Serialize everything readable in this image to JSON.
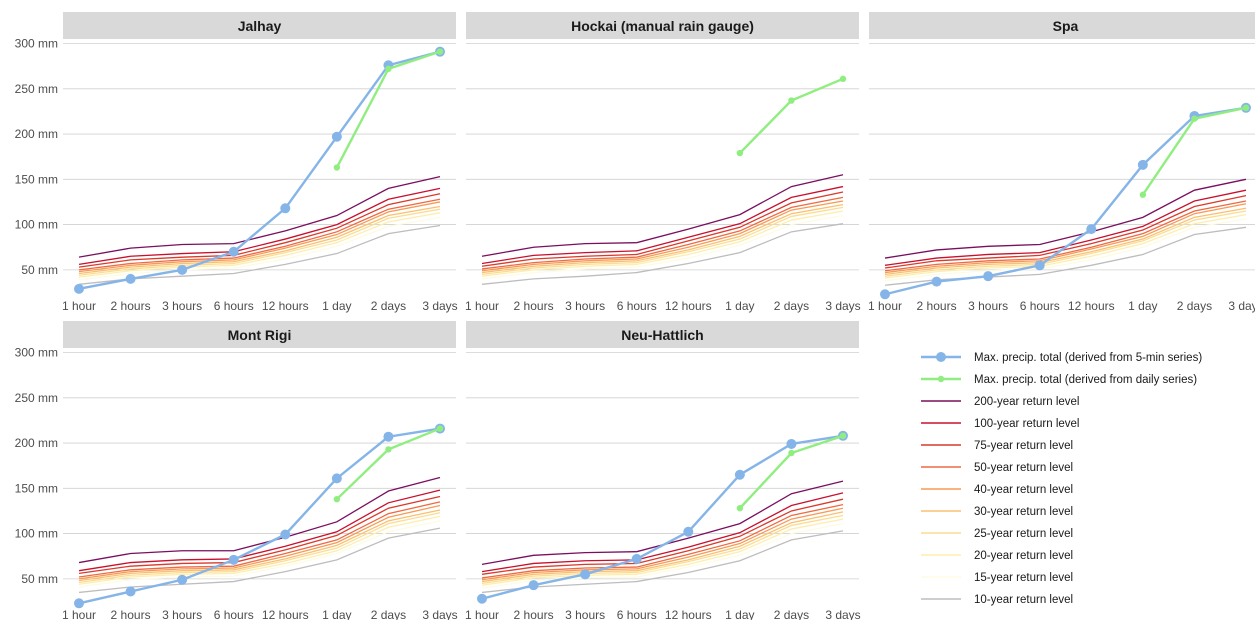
{
  "chart_data": {
    "type": "line",
    "x_categories": [
      "1 hour",
      "2 hours",
      "3 hours",
      "6 hours",
      "12 hours",
      "1 day",
      "2 days",
      "3 days"
    ],
    "ylim": [
      20,
      305
    ],
    "y_ticks": [
      50,
      100,
      150,
      200,
      250,
      300
    ],
    "y_tick_labels": [
      "50 mm",
      "100 mm",
      "150 mm",
      "200 mm",
      "250 mm",
      "300 mm"
    ],
    "grid": true,
    "legend_position": "bottom-right",
    "series_styles": [
      {
        "name": "Max. precip. total (derived from 5-min series)",
        "color": "#85b5e8",
        "kind": "point-line"
      },
      {
        "name": "Max. precip. total (derived from daily series)",
        "color": "#90ee80",
        "kind": "small-point-line"
      },
      {
        "name": "200-year return level",
        "color": "#7a0f5f",
        "kind": "line"
      },
      {
        "name": "100-year return level",
        "color": "#c8102e",
        "kind": "line"
      },
      {
        "name": "75-year return level",
        "color": "#d93a2b",
        "kind": "line"
      },
      {
        "name": "50-year return level",
        "color": "#ee6a43",
        "kind": "line"
      },
      {
        "name": "40-year return level",
        "color": "#f69a55",
        "kind": "line"
      },
      {
        "name": "30-year return level",
        "color": "#f9c070",
        "kind": "line"
      },
      {
        "name": "25-year return level",
        "color": "#fcdc93",
        "kind": "line"
      },
      {
        "name": "20-year return level",
        "color": "#fdeeaf",
        "kind": "line"
      },
      {
        "name": "15-year return level",
        "color": "#fefbe3",
        "kind": "line"
      },
      {
        "name": "10-year return level",
        "color": "#bdbdbd",
        "kind": "line"
      }
    ],
    "panels": [
      {
        "title": "Jalhay",
        "series": [
          {
            "name": "Max. precip. total (derived from 5-min series)",
            "values": [
              29,
              40,
              50,
              70,
              118,
              197,
              276,
              291
            ]
          },
          {
            "name": "Max. precip. total (derived from daily series)",
            "values": [
              null,
              null,
              null,
              null,
              null,
              163,
              272,
              291
            ]
          },
          {
            "name": "200-year return level",
            "values": [
              64,
              74,
              78,
              79,
              93,
              110,
              140,
              153
            ]
          },
          {
            "name": "100-year return level",
            "values": [
              56,
              65,
              68,
              70,
              84,
              100,
              128,
              140
            ]
          },
          {
            "name": "75-year return level",
            "values": [
              53,
              61,
              64,
              66,
              80,
              96,
              122,
              134
            ]
          },
          {
            "name": "50-year return level",
            "values": [
              50,
              57,
              61,
              63,
              76,
              92,
              117,
              128
            ]
          },
          {
            "name": "40-year return level",
            "values": [
              48,
              55,
              59,
              61,
              74,
              89,
              114,
              125
            ]
          },
          {
            "name": "30-year return level",
            "values": [
              46,
              53,
              57,
              59,
              71,
              86,
              110,
              120
            ]
          },
          {
            "name": "25-year return level",
            "values": [
              44,
              51,
              55,
              57,
              69,
              83,
              107,
              117
            ]
          },
          {
            "name": "20-year return level",
            "values": [
              42,
              49,
              53,
              55,
              66,
              80,
              103,
              113
            ]
          },
          {
            "name": "15-year return level",
            "values": [
              39,
              46,
              50,
              52,
              62,
              76,
              98,
              108
            ]
          },
          {
            "name": "10-year return level",
            "values": [
              34,
              40,
              43,
              46,
              56,
              68,
              90,
              99
            ]
          }
        ]
      },
      {
        "title": "Hockai (manual rain gauge)",
        "series": [
          {
            "name": "Max. precip. total (derived from daily series)",
            "values": [
              null,
              null,
              null,
              null,
              null,
              179,
              237,
              261
            ]
          },
          {
            "name": "200-year return level",
            "values": [
              65,
              75,
              79,
              80,
              95,
              111,
              142,
              155
            ]
          },
          {
            "name": "100-year return level",
            "values": [
              57,
              66,
              69,
              71,
              86,
              101,
              130,
              142
            ]
          },
          {
            "name": "75-year return level",
            "values": [
              54,
              62,
              65,
              67,
              82,
              97,
              124,
              136
            ]
          },
          {
            "name": "50-year return level",
            "values": [
              51,
              58,
              62,
              64,
              78,
              93,
              119,
              130
            ]
          },
          {
            "name": "40-year return level",
            "values": [
              49,
              56,
              60,
              62,
              75,
              90,
              116,
              126
            ]
          },
          {
            "name": "30-year return level",
            "values": [
              47,
              54,
              58,
              60,
              72,
              87,
              112,
              122
            ]
          },
          {
            "name": "25-year return level",
            "values": [
              45,
              52,
              56,
              58,
              70,
              84,
              109,
              119
            ]
          },
          {
            "name": "20-year return level",
            "values": [
              43,
              50,
              54,
              56,
              67,
              81,
              105,
              115
            ]
          },
          {
            "name": "15-year return level",
            "values": [
              40,
              47,
              51,
              53,
              63,
              77,
              100,
              110
            ]
          },
          {
            "name": "10-year return level",
            "values": [
              34,
              40,
              43,
              47,
              57,
              69,
              92,
              101
            ]
          }
        ]
      },
      {
        "title": "Spa",
        "series": [
          {
            "name": "Max. precip. total (derived from 5-min series)",
            "values": [
              23,
              37,
              43,
              55,
              95,
              166,
              220,
              229
            ]
          },
          {
            "name": "Max. precip. total (derived from daily series)",
            "values": [
              null,
              null,
              null,
              null,
              null,
              133,
              217,
              229
            ]
          },
          {
            "name": "200-year return level",
            "values": [
              63,
              72,
              76,
              78,
              92,
              108,
              138,
              150
            ]
          },
          {
            "name": "100-year return level",
            "values": [
              55,
              63,
              67,
              69,
              83,
              98,
              126,
              138
            ]
          },
          {
            "name": "75-year return level",
            "values": [
              52,
              60,
              63,
              66,
              79,
              94,
              120,
              132
            ]
          },
          {
            "name": "50-year return level",
            "values": [
              49,
              56,
              60,
              62,
              75,
              90,
              115,
              126
            ]
          },
          {
            "name": "40-year return level",
            "values": [
              47,
              54,
              58,
              60,
              73,
              87,
              112,
              123
            ]
          },
          {
            "name": "30-year return level",
            "values": [
              45,
              52,
              56,
              58,
              70,
              84,
              108,
              118
            ]
          },
          {
            "name": "25-year return level",
            "values": [
              43,
              50,
              54,
              56,
              68,
              82,
              105,
              115
            ]
          },
          {
            "name": "20-year return level",
            "values": [
              41,
              48,
              52,
              54,
              65,
              79,
              101,
              111
            ]
          },
          {
            "name": "15-year return level",
            "values": [
              38,
              45,
              49,
              51,
              61,
              75,
              97,
              106
            ]
          },
          {
            "name": "10-year return level",
            "values": [
              33,
              39,
              42,
              45,
              55,
              67,
              89,
              97
            ]
          }
        ]
      },
      {
        "title": "Mont Rigi",
        "series": [
          {
            "name": "Max. precip. total (derived from 5-min series)",
            "values": [
              23,
              36,
              49,
              71,
              99,
              161,
              207,
              216
            ]
          },
          {
            "name": "Max. precip. total (derived from daily series)",
            "values": [
              null,
              null,
              null,
              null,
              null,
              138,
              193,
              216
            ]
          },
          {
            "name": "200-year return level",
            "values": [
              68,
              78,
              81,
              81,
              96,
              113,
              147,
              162
            ]
          },
          {
            "name": "100-year return level",
            "values": [
              59,
              68,
              71,
              72,
              86,
              102,
              134,
              148
            ]
          },
          {
            "name": "75-year return level",
            "values": [
              56,
              64,
              67,
              68,
              82,
              98,
              128,
              141
            ]
          },
          {
            "name": "50-year return level",
            "values": [
              52,
              60,
              63,
              64,
              78,
              93,
              122,
              135
            ]
          },
          {
            "name": "40-year return level",
            "values": [
              50,
              58,
              61,
              62,
              75,
              90,
              118,
              131
            ]
          },
          {
            "name": "30-year return level",
            "values": [
              48,
              56,
              59,
              60,
              72,
              87,
              114,
              126
            ]
          },
          {
            "name": "25-year return level",
            "values": [
              46,
              54,
              57,
              58,
              70,
              84,
              111,
              123
            ]
          },
          {
            "name": "20-year return level",
            "values": [
              44,
              52,
              55,
              56,
              67,
              81,
              107,
              119
            ]
          },
          {
            "name": "15-year return level",
            "values": [
              41,
              49,
              52,
              53,
              64,
              78,
              102,
              114
            ]
          },
          {
            "name": "10-year return level",
            "values": [
              35,
              41,
              44,
              47,
              58,
              71,
              95,
              106
            ]
          }
        ]
      },
      {
        "title": "Neu-Hattlich",
        "series": [
          {
            "name": "Max. precip. total (derived from 5-min series)",
            "values": [
              28,
              43,
              55,
              72,
              102,
              165,
              199,
              208
            ]
          },
          {
            "name": "Max. precip. total (derived from daily series)",
            "values": [
              null,
              null,
              null,
              null,
              null,
              128,
              189,
              208
            ]
          },
          {
            "name": "200-year return level",
            "values": [
              66,
              76,
              79,
              80,
              95,
              111,
              144,
              158
            ]
          },
          {
            "name": "100-year return level",
            "values": [
              58,
              67,
              70,
              71,
              85,
              101,
              131,
              145
            ]
          },
          {
            "name": "75-year return level",
            "values": [
              55,
              63,
              66,
              67,
              81,
              97,
              125,
              138
            ]
          },
          {
            "name": "50-year return level",
            "values": [
              51,
              59,
              62,
              63,
              77,
              92,
              120,
              132
            ]
          },
          {
            "name": "40-year return level",
            "values": [
              49,
              57,
              60,
              61,
              74,
              89,
              116,
              128
            ]
          },
          {
            "name": "30-year return level",
            "values": [
              47,
              55,
              58,
              59,
              71,
              86,
              112,
              124
            ]
          },
          {
            "name": "25-year return level",
            "values": [
              45,
              53,
              56,
              57,
              69,
              83,
              109,
              120
            ]
          },
          {
            "name": "20-year return level",
            "values": [
              43,
              51,
              54,
              55,
              66,
              80,
              105,
              116
            ]
          },
          {
            "name": "15-year return level",
            "values": [
              40,
              48,
              51,
              52,
              63,
              76,
              100,
              111
            ]
          },
          {
            "name": "10-year return level",
            "values": [
              35,
              41,
              44,
              47,
              57,
              70,
              93,
              103
            ]
          }
        ]
      }
    ]
  }
}
